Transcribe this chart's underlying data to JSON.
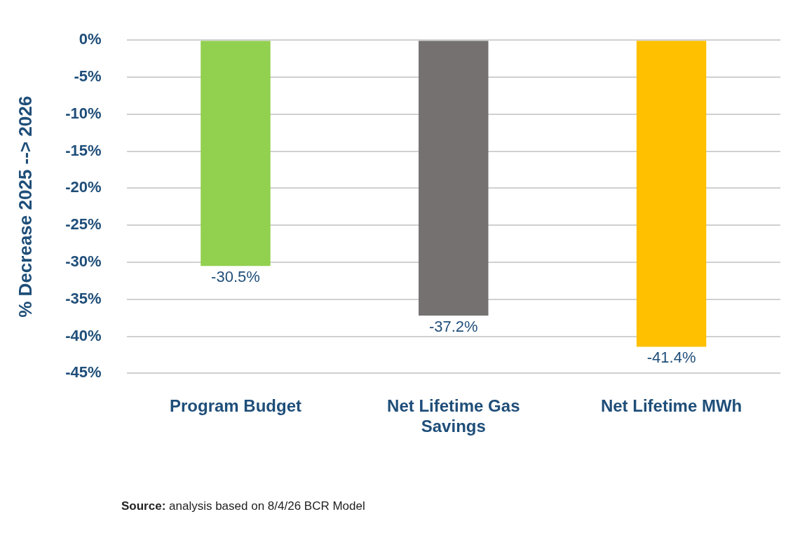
{
  "chart_data": {
    "type": "bar",
    "ylabel": "% Decrease 2025 --> 2026",
    "categories": [
      "Program Budget",
      "Net Lifetime Gas Savings",
      "Net Lifetime MWh"
    ],
    "values": [
      -30.5,
      -37.2,
      -41.4
    ],
    "colors": [
      "#92d050",
      "#757171",
      "#ffc000"
    ],
    "value_labels": [
      "-30.5%",
      "-37.2%",
      "-41.4%"
    ],
    "ylim": [
      -45,
      0
    ],
    "yticks": [
      {
        "value": 0,
        "label": "0%"
      },
      {
        "value": -5,
        "label": "-5%"
      },
      {
        "value": -10,
        "label": "-10%"
      },
      {
        "value": -15,
        "label": "-15%"
      },
      {
        "value": -20,
        "label": "-20%"
      },
      {
        "value": -25,
        "label": "-25%"
      },
      {
        "value": -30,
        "label": "-30%"
      },
      {
        "value": -35,
        "label": "-35%"
      },
      {
        "value": -40,
        "label": "-40%"
      },
      {
        "value": -45,
        "label": "-45%"
      }
    ],
    "grid": "y",
    "annotations": [
      "Source: analysis based on 8/4/26 BCR Model"
    ]
  }
}
